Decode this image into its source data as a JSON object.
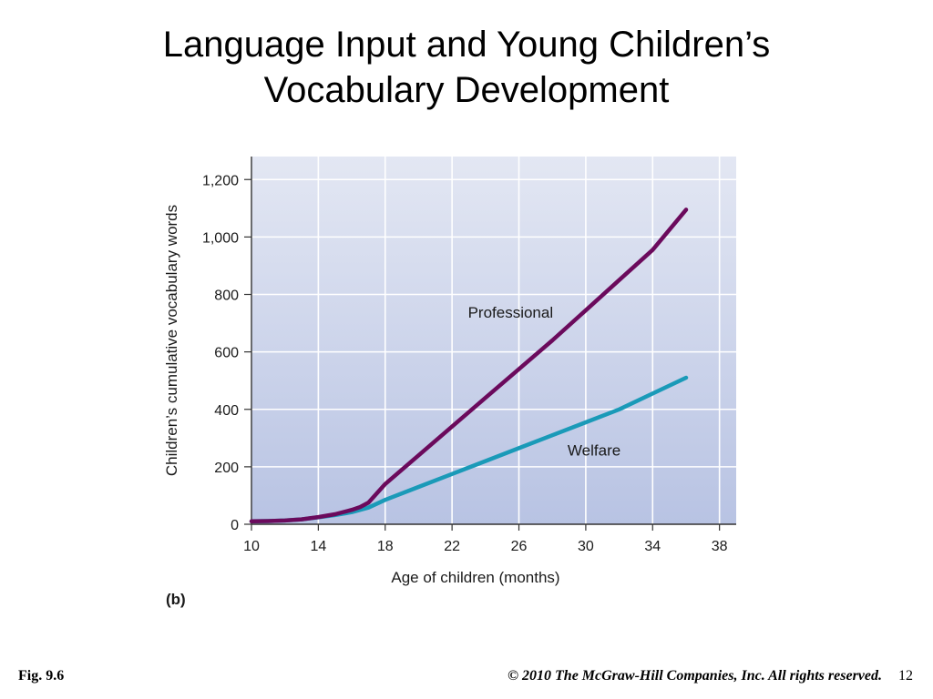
{
  "slide": {
    "title_line1": "Language Input and Young Children’s",
    "title_line2": "Vocabulary Development",
    "fig_label": "Fig. 9.6",
    "copyright": "© 2010 The McGraw-Hill Companies, Inc. All rights reserved.",
    "page_number": "12"
  },
  "colors": {
    "plot_bg_top": "#e3e7f3",
    "plot_bg_bottom": "#b8c3e3",
    "professional": "#6b0a5c",
    "welfare": "#1a9ab8",
    "grid": "#ffffff"
  },
  "chart_data": {
    "type": "line",
    "panel_label": "(b)",
    "xlabel": "Age of children (months)",
    "ylabel": "Children’s cumulative vocabulary words",
    "xlim": [
      10,
      39
    ],
    "ylim": [
      0,
      1280
    ],
    "x_ticks": [
      10,
      14,
      18,
      22,
      26,
      30,
      34,
      38
    ],
    "y_ticks": [
      0,
      200,
      400,
      600,
      800,
      1000,
      1200
    ],
    "y_tick_labels": [
      "0",
      "200",
      "400",
      "600",
      "800",
      "1,000",
      "1,200"
    ],
    "grid": true,
    "series": [
      {
        "name": "Professional",
        "x": [
          10,
          11,
          12,
          13,
          14,
          15,
          16,
          16.5,
          17,
          18,
          20,
          22,
          24,
          26,
          28,
          30,
          32,
          34,
          36
        ],
        "y": [
          10,
          11,
          13,
          17,
          25,
          35,
          50,
          60,
          75,
          140,
          240,
          340,
          440,
          540,
          640,
          745,
          850,
          955,
          1095
        ]
      },
      {
        "name": "Welfare",
        "x": [
          10,
          11,
          12,
          13,
          14,
          15,
          16,
          17,
          18,
          20,
          22,
          24,
          26,
          28,
          30,
          32,
          34,
          36
        ],
        "y": [
          10,
          11,
          13,
          17,
          24,
          32,
          42,
          58,
          85,
          130,
          175,
          220,
          265,
          310,
          355,
          400,
          455,
          510
        ]
      }
    ],
    "series_label_positions": [
      {
        "name": "Professional",
        "x": 25.5,
        "y": 720
      },
      {
        "name": "Welfare",
        "x": 30.5,
        "y": 240
      }
    ]
  }
}
